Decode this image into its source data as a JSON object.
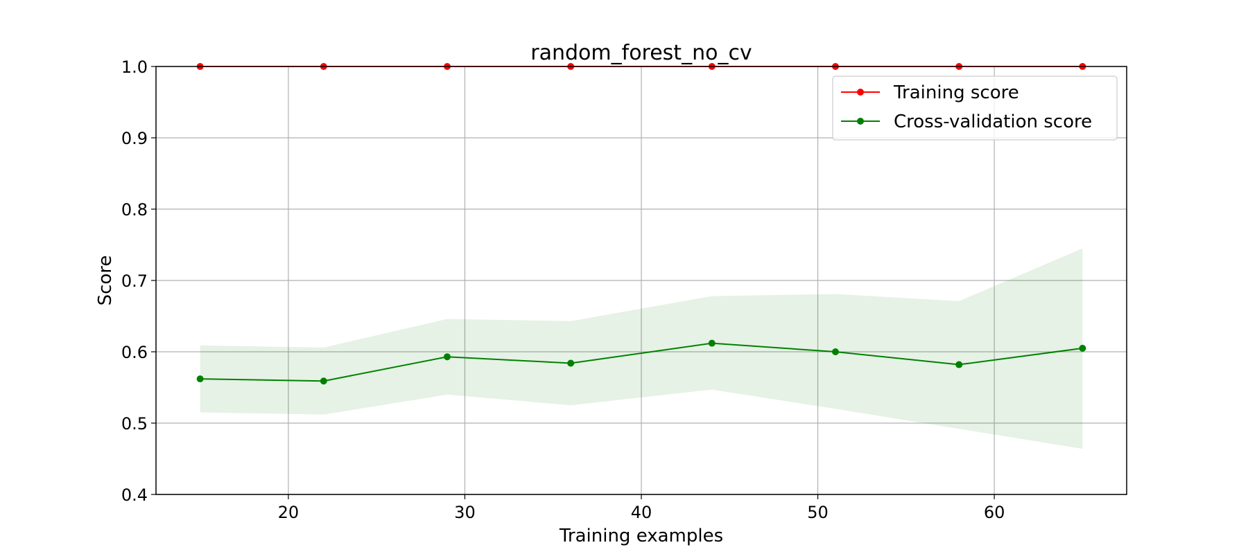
{
  "chart_data": {
    "type": "line",
    "title": "random_forest_no_cv",
    "xlabel": "Training examples",
    "ylabel": "Score",
    "xlim": [
      12.5,
      67.5
    ],
    "ylim": [
      0.4,
      1.0
    ],
    "xticks": [
      20,
      30,
      40,
      50,
      60
    ],
    "yticks": [
      0.4,
      0.5,
      0.6,
      0.7,
      0.8,
      0.9,
      1.0
    ],
    "xtick_labels": [
      "20",
      "30",
      "40",
      "50",
      "60"
    ],
    "ytick_labels": [
      "0.4",
      "0.5",
      "0.6",
      "0.7",
      "0.8",
      "0.9",
      "1.0"
    ],
    "grid": true,
    "legend_position": "top-right",
    "x": [
      15,
      22,
      29,
      36,
      44,
      51,
      58,
      65
    ],
    "series": [
      {
        "name": "Training score",
        "color": "#ff0000",
        "values": [
          1.0,
          1.0,
          1.0,
          1.0,
          1.0,
          1.0,
          1.0,
          1.0
        ],
        "band_lower": [
          1.0,
          1.0,
          1.0,
          1.0,
          1.0,
          1.0,
          1.0,
          1.0
        ],
        "band_upper": [
          1.0,
          1.0,
          1.0,
          1.0,
          1.0,
          1.0,
          1.0,
          1.0
        ]
      },
      {
        "name": "Cross-validation score",
        "color": "#008000",
        "band_color": "#008000",
        "values": [
          0.562,
          0.559,
          0.593,
          0.584,
          0.612,
          0.6,
          0.582,
          0.605
        ],
        "band_lower": [
          0.515,
          0.512,
          0.54,
          0.525,
          0.547,
          0.52,
          0.492,
          0.464
        ],
        "band_upper": [
          0.609,
          0.606,
          0.646,
          0.643,
          0.678,
          0.681,
          0.671,
          0.745
        ]
      }
    ]
  }
}
